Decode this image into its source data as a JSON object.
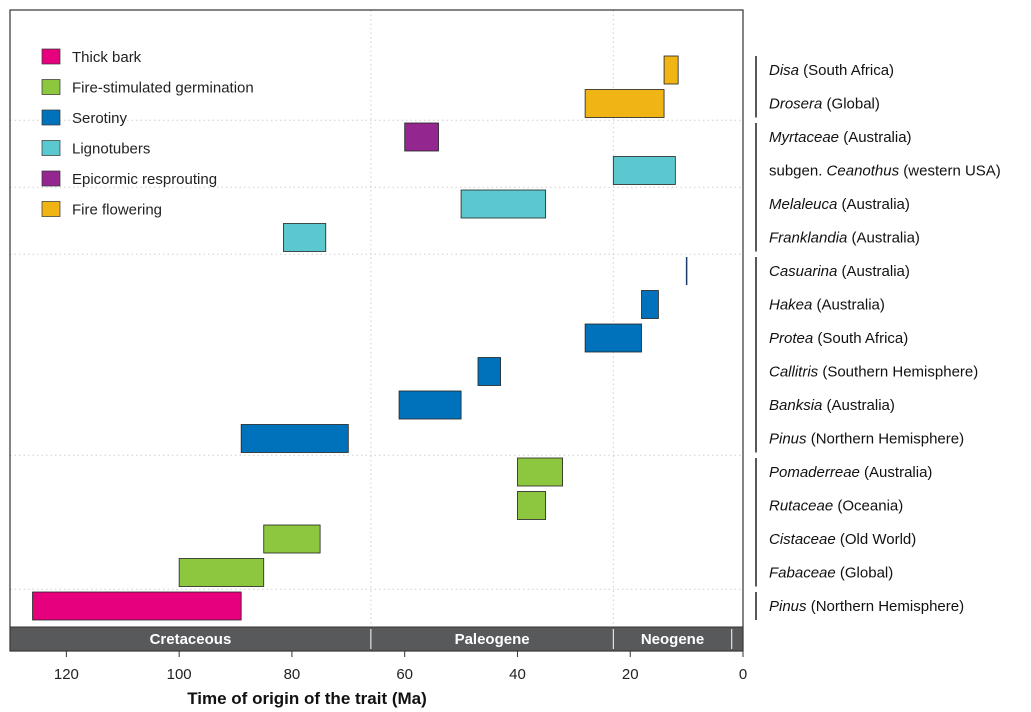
{
  "chart_data": {
    "type": "bar",
    "orientation": "horizontal-range",
    "xlabel": "Time of origin of the trait (Ma)",
    "x_range": [
      130,
      0
    ],
    "x_ticks": [
      120,
      100,
      80,
      60,
      40,
      20,
      0
    ],
    "grid": "dotted vertical at period boundaries and dotted horizontal between trait groups",
    "legend_placement": "top-left",
    "eras": [
      {
        "name": "Cretaceous",
        "start": 130,
        "end": 66
      },
      {
        "name": "Paleogene",
        "start": 66,
        "end": 23
      },
      {
        "name": "Neogene",
        "start": 23,
        "end": 2
      }
    ],
    "traits": [
      {
        "name": "Thick bark",
        "color": "#e6007e"
      },
      {
        "name": "Fire-stimulated germination",
        "color": "#8dc63f"
      },
      {
        "name": "Serotiny",
        "color": "#0072bc"
      },
      {
        "name": "Lignotubers",
        "color": "#5bc8d0"
      },
      {
        "name": "Epicormic resprouting",
        "color": "#93278f"
      },
      {
        "name": "Fire flowering",
        "color": "#f0b414"
      }
    ],
    "rows": [
      {
        "taxon": "Disa",
        "region": "(South Africa)",
        "taxon_italic": true,
        "trait": "Fire flowering",
        "start": 14,
        "end": 11.5
      },
      {
        "taxon": "Drosera",
        "region": "(Global)",
        "taxon_italic": true,
        "trait": "Fire flowering",
        "start": 28,
        "end": 14
      },
      {
        "taxon": "Myrtaceae",
        "region": "(Australia)",
        "taxon_italic": true,
        "trait": "Epicormic resprouting",
        "start": 60,
        "end": 54
      },
      {
        "taxon_prefix": "subgen. ",
        "taxon": "Ceanothus",
        "region": "(western USA)",
        "taxon_italic": true,
        "trait": "Lignotubers",
        "start": 23,
        "end": 12
      },
      {
        "taxon": "Melaleuca",
        "region": "(Australia)",
        "taxon_italic": true,
        "trait": "Lignotubers",
        "start": 50,
        "end": 35
      },
      {
        "taxon": "Franklandia",
        "region": "(Australia)",
        "taxon_italic": true,
        "trait": "Lignotubers",
        "start": 81.5,
        "end": 74
      },
      {
        "taxon": "Casuarina",
        "region": "(Australia)",
        "taxon_italic": true,
        "trait": "Serotiny",
        "start": 10,
        "end": 10
      },
      {
        "taxon": "Hakea",
        "region": "(Australia)",
        "taxon_italic": true,
        "trait": "Serotiny",
        "start": 18,
        "end": 15
      },
      {
        "taxon": "Protea",
        "region": "(South Africa)",
        "taxon_italic": true,
        "trait": "Serotiny",
        "start": 28,
        "end": 18
      },
      {
        "taxon": "Callitris",
        "region": "(Southern Hemisphere)",
        "taxon_italic": true,
        "trait": "Serotiny",
        "start": 47,
        "end": 43
      },
      {
        "taxon": "Banksia",
        "region": "(Australia)",
        "taxon_italic": true,
        "trait": "Serotiny",
        "start": 61,
        "end": 50
      },
      {
        "taxon": "Pinus",
        "region": "(Northern Hemisphere)",
        "taxon_italic": true,
        "trait": "Serotiny",
        "start": 89,
        "end": 70
      },
      {
        "taxon": "Pomaderreae",
        "region": "(Australia)",
        "taxon_italic": true,
        "trait": "Fire-stimulated germination",
        "start": 40,
        "end": 32
      },
      {
        "taxon": "Rutaceae",
        "region": "(Oceania)",
        "taxon_italic": true,
        "trait": "Fire-stimulated germination",
        "start": 40,
        "end": 35
      },
      {
        "taxon": "Cistaceae",
        "region": "(Old World)",
        "taxon_italic": true,
        "trait": "Fire-stimulated germination",
        "start": 85,
        "end": 75
      },
      {
        "taxon": "Fabaceae",
        "region": "(Global)",
        "taxon_italic": true,
        "trait": "Fire-stimulated germination",
        "start": 100,
        "end": 85
      },
      {
        "taxon": "Pinus",
        "region": "(Northern Hemisphere)",
        "taxon_italic": true,
        "trait": "Thick bark",
        "start": 126,
        "end": 89
      }
    ],
    "group_separators_after_rows": [
      1,
      3,
      5,
      11,
      15
    ]
  }
}
